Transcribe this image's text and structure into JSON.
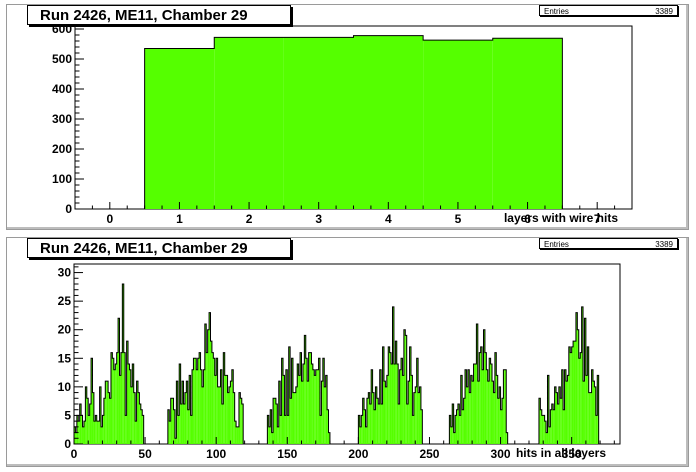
{
  "colors": {
    "fill": "#55ff00",
    "line": "#000000",
    "frame": "#9a9a9a"
  },
  "chart_data": [
    {
      "type": "bar",
      "title": "Run 2426, ME11, Chamber 29",
      "stats": {
        "label": "Entries",
        "value": "3389"
      },
      "xlabel": "layers with wire hits",
      "ylabel": "",
      "xlim": [
        -0.5,
        7.5
      ],
      "ylim": [
        0,
        610
      ],
      "xticks": [
        0,
        1,
        2,
        3,
        4,
        5,
        6,
        7
      ],
      "yticks": [
        0,
        100,
        200,
        300,
        400,
        500,
        600
      ],
      "bin_width": 1,
      "categories": [
        1,
        2,
        3,
        4,
        5,
        6
      ],
      "values": [
        535,
        572,
        572,
        578,
        563,
        569
      ]
    },
    {
      "type": "bar",
      "title": "Run 2426, ME11, Chamber 29",
      "stats": {
        "label": "Entries",
        "value": "3389"
      },
      "xlabel": "hits in all layers",
      "ylabel": "",
      "xlim": [
        0,
        384
      ],
      "ylim": [
        0,
        31.5
      ],
      "xticks": [
        0,
        50,
        100,
        150,
        200,
        250,
        300,
        350
      ],
      "yticks": [
        0,
        5,
        10,
        15,
        20,
        25,
        30
      ],
      "bin_width": 1,
      "bin_start": 0,
      "values": [
        3,
        2,
        5,
        4,
        7,
        5,
        3,
        4,
        10,
        8,
        5,
        7,
        15,
        9,
        4,
        5,
        4,
        4,
        10,
        3,
        5,
        8,
        11,
        11,
        9,
        8,
        16,
        15,
        13,
        14,
        16,
        22,
        12,
        16,
        28,
        16,
        5,
        18,
        14,
        13,
        10,
        14,
        9,
        4,
        11,
        9,
        7,
        6,
        5,
        0,
        0,
        0,
        0,
        0,
        0,
        0,
        0,
        0,
        0,
        0,
        0,
        0,
        0,
        0,
        0,
        0,
        6,
        4,
        8,
        8,
        6,
        1,
        11,
        5,
        14,
        7,
        11,
        7,
        9,
        11,
        6,
        12,
        5,
        13,
        15,
        15,
        13,
        15,
        16,
        13,
        10,
        13,
        21,
        16,
        20,
        23,
        18,
        16,
        15,
        12,
        15,
        10,
        10,
        13,
        7,
        16,
        12,
        12,
        9,
        10,
        11,
        13,
        9,
        4,
        3,
        3,
        9,
        8,
        7,
        0,
        0,
        0,
        0,
        0,
        0,
        0,
        0,
        0,
        0,
        0,
        0,
        0,
        0,
        0,
        0,
        0,
        5,
        3,
        6,
        2,
        8,
        8,
        7,
        3,
        11,
        5,
        15,
        12,
        5,
        13,
        5,
        17,
        8,
        15,
        9,
        9,
        10,
        14,
        12,
        16,
        11,
        14,
        19,
        15,
        11,
        16,
        16,
        14,
        13,
        12,
        13,
        13,
        15,
        5,
        11,
        15,
        10,
        12,
        6,
        2,
        0,
        0,
        0,
        0,
        0,
        0,
        0,
        0,
        0,
        0,
        0,
        0,
        0,
        0,
        0,
        0,
        0,
        0,
        0,
        0,
        5,
        3,
        5,
        8,
        6,
        3,
        8,
        9,
        7,
        13,
        9,
        6,
        10,
        8,
        7,
        13,
        7,
        17,
        11,
        10,
        12,
        17,
        16,
        14,
        24,
        14,
        18,
        14,
        7,
        13,
        15,
        12,
        20,
        19,
        7,
        11,
        17,
        12,
        5,
        9,
        10,
        15,
        9,
        10,
        6,
        0,
        0,
        0,
        0,
        0,
        0,
        0,
        0,
        0,
        0,
        0,
        0,
        0,
        0,
        0,
        0,
        0,
        0,
        0,
        5,
        3,
        7,
        2,
        5,
        6,
        7,
        5,
        12,
        6,
        8,
        13,
        10,
        13,
        9,
        12,
        11,
        14,
        14,
        21,
        11,
        16,
        17,
        13,
        20,
        16,
        13,
        11,
        15,
        14,
        11,
        9,
        16,
        12,
        8,
        10,
        6,
        8,
        13,
        13,
        2,
        0,
        0,
        0,
        0,
        0,
        0,
        0,
        0,
        0,
        0,
        0,
        0,
        0,
        0,
        0,
        0,
        0,
        0,
        0,
        0,
        0,
        0,
        8,
        6,
        5,
        5,
        4,
        2,
        12,
        3,
        6,
        7,
        6,
        10,
        9,
        7,
        10,
        8,
        13,
        6,
        13,
        11,
        12,
        17,
        16,
        17,
        18,
        18,
        23,
        20,
        15,
        16,
        24,
        11,
        22,
        12,
        17,
        9,
        9,
        13,
        11,
        10,
        5,
        12
      ]
    }
  ]
}
